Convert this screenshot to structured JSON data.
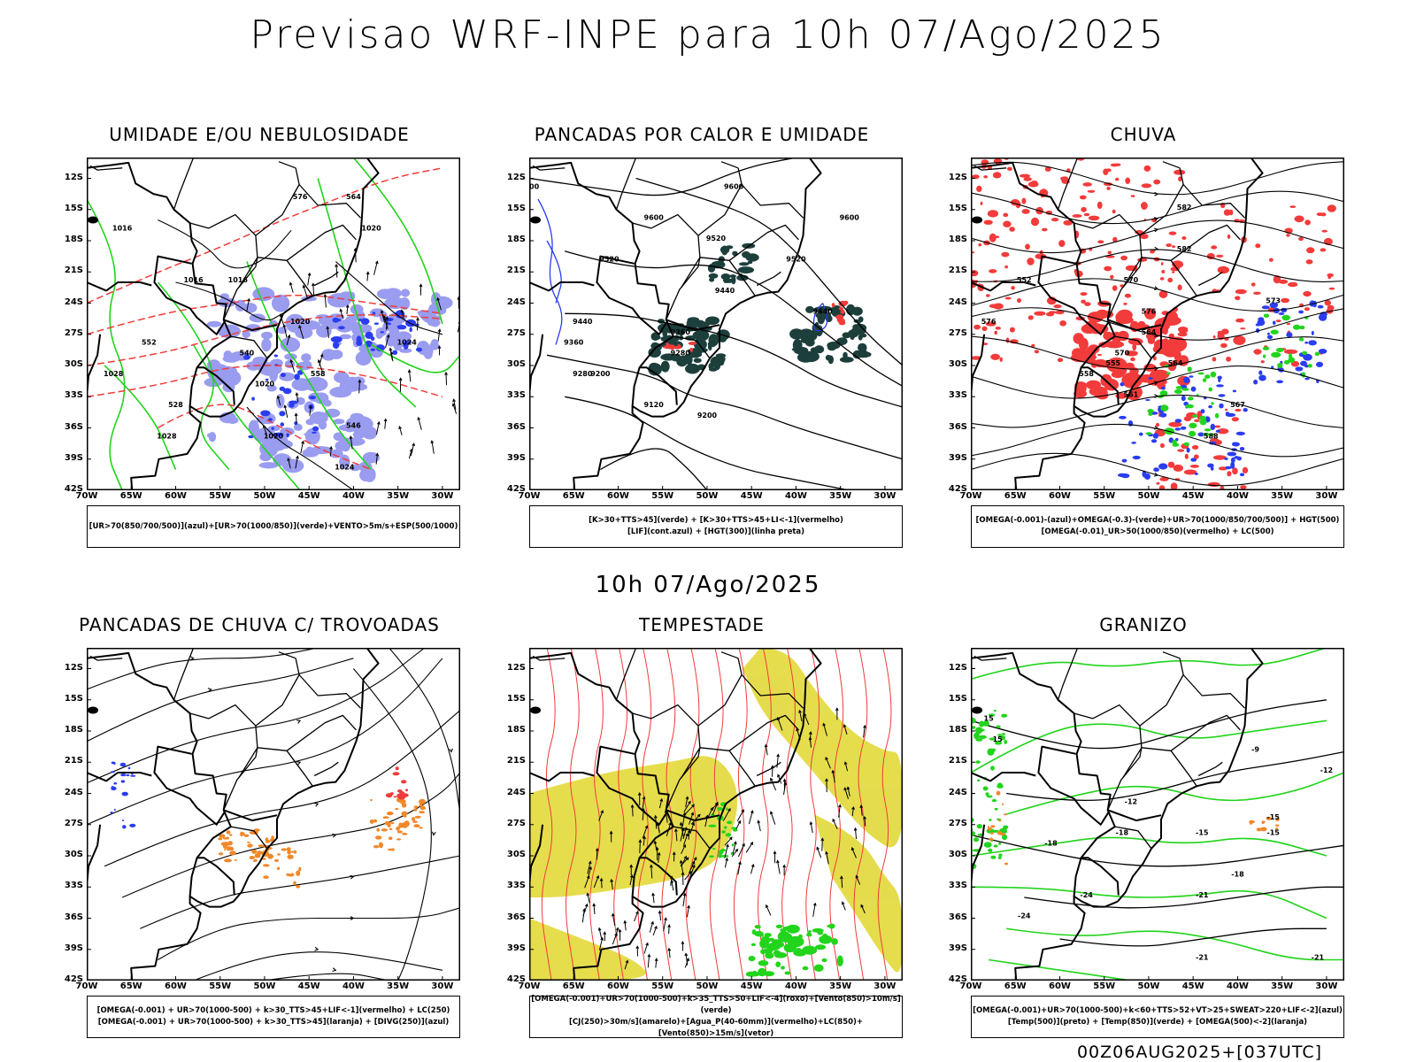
{
  "title": "Previsao WRF-INPE  para 10h 07/Ago/2025",
  "subtitle": "10h 07/Ago/2025",
  "footer": "00Z06AUG2025+[037UTC]",
  "axes": {
    "lat_ticks": [
      "12S",
      "15S",
      "18S",
      "21S",
      "24S",
      "27S",
      "30S",
      "33S",
      "36S",
      "39S",
      "42S"
    ],
    "lon_ticks": [
      "70W",
      "65W",
      "60W",
      "55W",
      "50W",
      "45W",
      "40W",
      "35W",
      "30W"
    ]
  },
  "colors": {
    "blue": "#2a3df0",
    "green": "#22d41c",
    "red": "#f23b3b",
    "orange": "#f0882a",
    "yellow": "#e3d93a",
    "dark_teal": "#1d3f3c",
    "lavender": "#9a9cf0",
    "black": "#000000"
  },
  "panels": [
    {
      "title": "UMIDADE E/OU NEBULOSIDADE",
      "legend": [
        "[UR>70(850/700/500)](azul)+[UR>70(1000/850)](verde)+VENTO>5m/s+ESP(500/1000)"
      ],
      "contour_labels": [
        "1016",
        "1016",
        "1016",
        "1020",
        "1020",
        "1020",
        "1024",
        "1024",
        "1028",
        "1028",
        "1020",
        "564",
        "576",
        "552",
        "540",
        "558",
        "546",
        "528"
      ]
    },
    {
      "title": "PANCADAS POR CALOR E UMIDADE",
      "legend": [
        "[K>30+TTS>45](verde) + [K>30+TTS>45+LI<-1](vermelho)",
        "[LIF](cont.azul) + [HGT(300)](linha preta)"
      ],
      "contour_labels": [
        "9600",
        "9600",
        "9600",
        "9520",
        "9520",
        "9520",
        "9440",
        "9440",
        "9440",
        "9360",
        "9360",
        "9280",
        "9280",
        "9200",
        "9200",
        "9120",
        "9600"
      ]
    },
    {
      "title": "CHUVA",
      "legend": [
        "[OMEGA(-0.001)-(azul)+OMEGA(-0.3)-(verde)+UR>70(1000/850/700/500)] + HGT(500)",
        "[OMEGA(-0.01)_UR>50(1000/850)(vermelho) + LC(500)"
      ],
      "contour_labels": [
        "582",
        "576",
        "570",
        "564",
        "558",
        "552",
        "576",
        "570",
        "564",
        "582",
        "588",
        "567",
        "561",
        "555",
        "573"
      ]
    },
    {
      "title": "PANCADAS DE CHUVA C/ TROVOADAS",
      "legend": [
        "[OMEGA(-0.001) + UR>70(1000-500) + k>30_TTS>45+LIF<-1](vermelho) + LC(250)",
        "[OMEGA(-0.001) + UR>70(1000-500) + k>30_TTS>45](laranja) + [DIVG(250)](azul)"
      ],
      "contour_labels": []
    },
    {
      "title": "TEMPESTADE",
      "legend": [
        "[OMEGA(-0.001)+UR>70(1000-500)+k>35_TTS>50+LIF<-4](roxo)+[Vento(850)>10m/s](verde)",
        "[CJ(250)>30m/s](amarelo)+[Agua_P(40-60mm)](vermelho)+LC(850)+[Vento(850)>15m/s](vetor)"
      ],
      "contour_labels": []
    },
    {
      "title": "GRANIZO",
      "legend": [
        "[OMEGA(-0.001)+UR>70(1000-500)+k<60+TTS>52+VT>25+SWEAT>220+LIF<-2](azul)",
        "[Temp(500)](preto) + [Temp(850)](verde) + [OMEGA(500)<-2](laranja)"
      ],
      "contour_labels": [
        "15",
        "-18",
        "-15",
        "-12",
        "-9",
        "-15",
        "-18",
        "-21",
        "-24",
        "-21",
        "-18",
        "-12",
        "-21",
        "-24",
        "-15",
        "15"
      ]
    }
  ]
}
